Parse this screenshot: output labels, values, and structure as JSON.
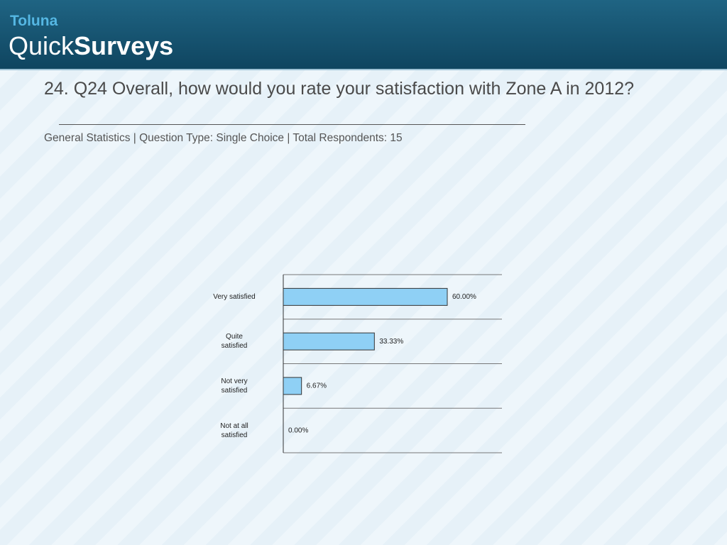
{
  "logo": {
    "brand": "Toluna",
    "product_light": "Quick",
    "product_bold": "Surveys"
  },
  "title": "24. Q24 Overall, how would you rate your satisfaction with Zone A in 2012?",
  "subtitle": "General Statistics | Question Type: Single Choice | Total Respondents: 15",
  "chart_data": {
    "type": "hbar",
    "categories": [
      "Very satisfied",
      "Quite\nsatisfied",
      "Not very\nsatisfied",
      "Not at all\nsatisfied"
    ],
    "values": [
      60,
      33.33,
      6.67,
      0
    ],
    "value_labels": [
      "60.00%",
      "33.33%",
      "6.67%",
      "0.00%"
    ],
    "color": "#8fd0f5",
    "xlim": [
      0,
      80
    ]
  }
}
